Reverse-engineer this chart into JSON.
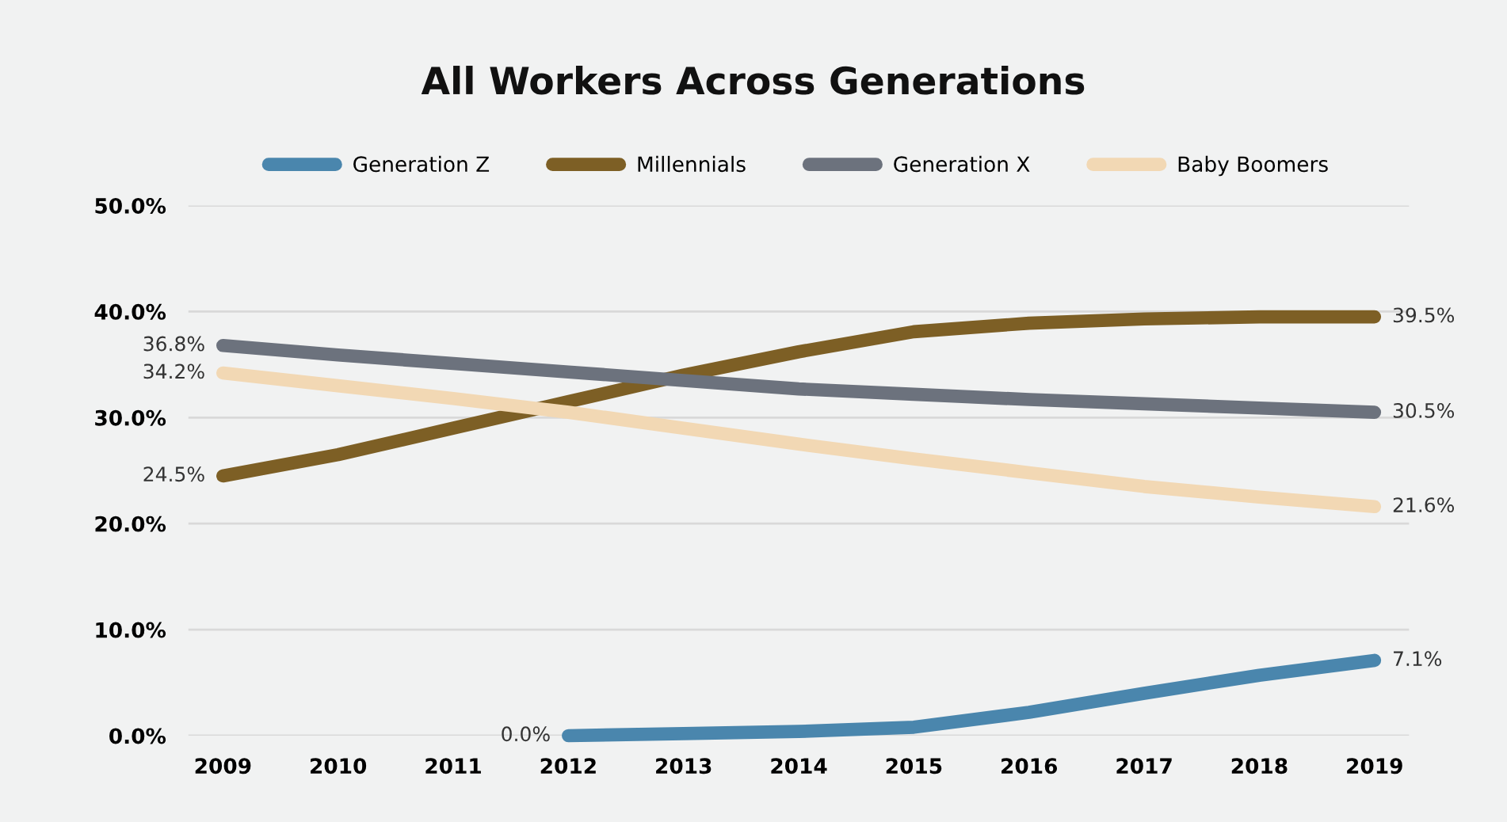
{
  "chart_data": {
    "type": "line",
    "title": "All Workers Across Generations",
    "categories": [
      "2009",
      "2010",
      "2011",
      "2012",
      "2013",
      "2014",
      "2015",
      "2016",
      "2017",
      "2018",
      "2019"
    ],
    "series": [
      {
        "name": "Generation Z",
        "color": "#4a86ad",
        "values": [
          null,
          null,
          null,
          0.0,
          0.2,
          0.4,
          0.8,
          2.2,
          4.0,
          5.7,
          7.1
        ],
        "value_labels": [
          null,
          null,
          null,
          "0.0%",
          null,
          null,
          null,
          null,
          null,
          null,
          "7.1%"
        ]
      },
      {
        "name": "Millennials",
        "color": "#7d5f25",
        "values": [
          24.5,
          26.5,
          29.0,
          31.5,
          34.0,
          36.2,
          38.1,
          38.9,
          39.3,
          39.5,
          39.5
        ],
        "value_labels": [
          "24.5%",
          null,
          null,
          null,
          null,
          null,
          null,
          null,
          null,
          null,
          "39.5%"
        ]
      },
      {
        "name": "Generation X",
        "color": "#6c727d",
        "values": [
          36.8,
          35.9,
          35.1,
          34.3,
          33.5,
          32.7,
          32.2,
          31.7,
          31.3,
          30.9,
          30.5
        ],
        "value_labels": [
          "36.8%",
          null,
          null,
          null,
          null,
          null,
          null,
          null,
          null,
          null,
          "30.5%"
        ]
      },
      {
        "name": "Baby Boomers",
        "color": "#f2d8b4",
        "values": [
          34.2,
          33.0,
          31.8,
          30.5,
          29.0,
          27.5,
          26.1,
          24.8,
          23.5,
          22.5,
          21.6
        ],
        "value_labels": [
          "34.2%",
          null,
          null,
          null,
          null,
          null,
          null,
          null,
          null,
          null,
          "21.6%"
        ]
      }
    ],
    "ylim": [
      0,
      50
    ],
    "yticks": [
      {
        "value": 0,
        "label": "0.0%"
      },
      {
        "value": 10,
        "label": "10.0%"
      },
      {
        "value": 20,
        "label": "20.0%"
      },
      {
        "value": 30,
        "label": "30.0%"
      },
      {
        "value": 40,
        "label": "40.0%"
      },
      {
        "value": 50,
        "label": "50.0%"
      }
    ],
    "grid": "y",
    "legend": "top",
    "marker": "none",
    "line_style": "solid"
  }
}
